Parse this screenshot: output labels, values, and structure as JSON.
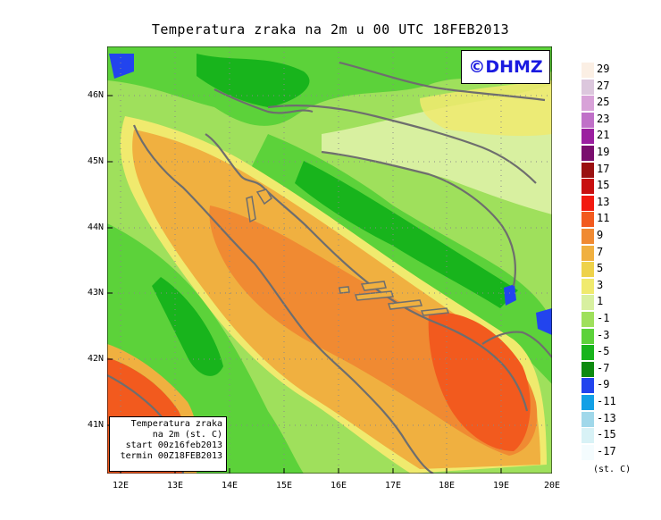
{
  "title": "Temperatura zraka na 2m u 00 UTC 18FEB2013",
  "watermark": "©DHMZ",
  "info_box": {
    "line1": "Temperatura zraka",
    "line2": "na 2m (st. C)",
    "line3": "start 00z16feb2013",
    "line4": "termin 00Z18FEB2013"
  },
  "units": "(st. C)",
  "lat_labels": [
    "46N",
    "45N",
    "44N",
    "43N",
    "42N",
    "41N"
  ],
  "lon_labels": [
    "12E",
    "13E",
    "14E",
    "15E",
    "16E",
    "17E",
    "18E",
    "19E",
    "20E"
  ],
  "colorbar": [
    {
      "label": "29",
      "color": "#fbefe4"
    },
    {
      "label": "27",
      "color": "#dcc7dd"
    },
    {
      "label": "25",
      "color": "#d8a2d8"
    },
    {
      "label": "23",
      "color": "#c070c8"
    },
    {
      "label": "21",
      "color": "#9b1fa0"
    },
    {
      "label": "19",
      "color": "#7a0e6e"
    },
    {
      "label": "17",
      "color": "#9a1010"
    },
    {
      "label": "15",
      "color": "#c81010"
    },
    {
      "label": "13",
      "color": "#f21a10"
    },
    {
      "label": "11",
      "color": "#f25a1e"
    },
    {
      "label": "9",
      "color": "#f08a32"
    },
    {
      "label": "7",
      "color": "#f0b040"
    },
    {
      "label": "5",
      "color": "#eed24a"
    },
    {
      "label": "3",
      "color": "#f0ea6e"
    },
    {
      "label": "1",
      "color": "#d8f0a0"
    },
    {
      "label": "-1",
      "color": "#9fe05c"
    },
    {
      "label": "-3",
      "color": "#5cd23a"
    },
    {
      "label": "-5",
      "color": "#18b41c"
    },
    {
      "label": "-7",
      "color": "#0e8a10"
    },
    {
      "label": "-9",
      "color": "#2244ee"
    },
    {
      "label": "-11",
      "color": "#12a0e6"
    },
    {
      "label": "-13",
      "color": "#a0d8ea"
    },
    {
      "label": "-15",
      "color": "#d8f2f6"
    },
    {
      "label": "-17",
      "color": "#f4fcfe"
    }
  ],
  "colors": {
    "sea_warm": "#f08a32",
    "sea_mild": "#f0b040",
    "coast_yellow": "#f0ea6e",
    "land_green": "#5cd23a",
    "mountain_green": "#18b41c",
    "border_gray": "#6e6e6e"
  }
}
